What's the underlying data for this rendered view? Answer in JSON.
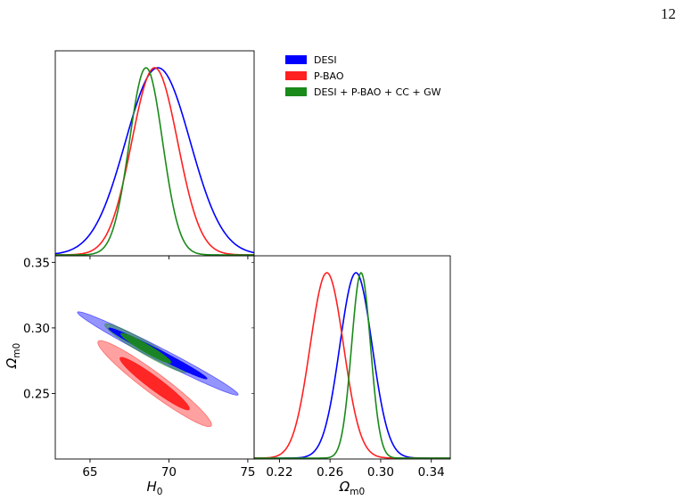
{
  "page_number": "12",
  "chart_data": {
    "type": "corner",
    "legend": {
      "placement": "top-right",
      "entries": [
        {
          "name": "DESI",
          "color": "#0000ff"
        },
        {
          "name": "P-BAO",
          "color": "#ff2020"
        },
        {
          "name": "DESI + P-BAO + CC + GW",
          "color": "#1a8a1a"
        }
      ]
    },
    "parameters": [
      {
        "key": "H0",
        "label_main": "H",
        "label_sub": "0",
        "range": [
          62.8,
          75.4
        ],
        "ticks": [
          65,
          70,
          75
        ]
      },
      {
        "key": "Om",
        "label_main": "Ω",
        "label_sub": "m0",
        "range": [
          0.2,
          0.355
        ],
        "ticks": [
          0.25,
          0.3,
          0.35
        ],
        "ticks_x": [
          0.22,
          0.26,
          0.3,
          0.34
        ],
        "range_x": [
          0.2,
          0.355
        ]
      }
    ],
    "tick_labels": {
      "H0": [
        "65",
        "70",
        "75"
      ],
      "Om_y": [
        "0.25",
        "0.30",
        "0.35"
      ],
      "Om_x": [
        "0.22",
        "0.26",
        "0.30",
        "0.34"
      ]
    },
    "series": [
      {
        "name": "DESI",
        "color": "#0000ff",
        "H0": {
          "mean": 69.3,
          "sigma": 2.05
        },
        "Om": {
          "mean": 0.2805,
          "sigma": 0.0128
        },
        "correlation": -0.985
      },
      {
        "name": "P-BAO",
        "color": "#ff2020",
        "H0": {
          "mean": 69.1,
          "sigma": 1.45
        },
        "Om": {
          "mean": 0.2575,
          "sigma": 0.0132
        },
        "correlation": -0.955
      },
      {
        "name": "DESI + P-BAO + CC + GW",
        "color": "#1a8a1a",
        "H0": {
          "mean": 68.55,
          "sigma": 1.05
        },
        "Om": {
          "mean": 0.2845,
          "sigma": 0.0075
        },
        "correlation": -0.955
      }
    ]
  }
}
